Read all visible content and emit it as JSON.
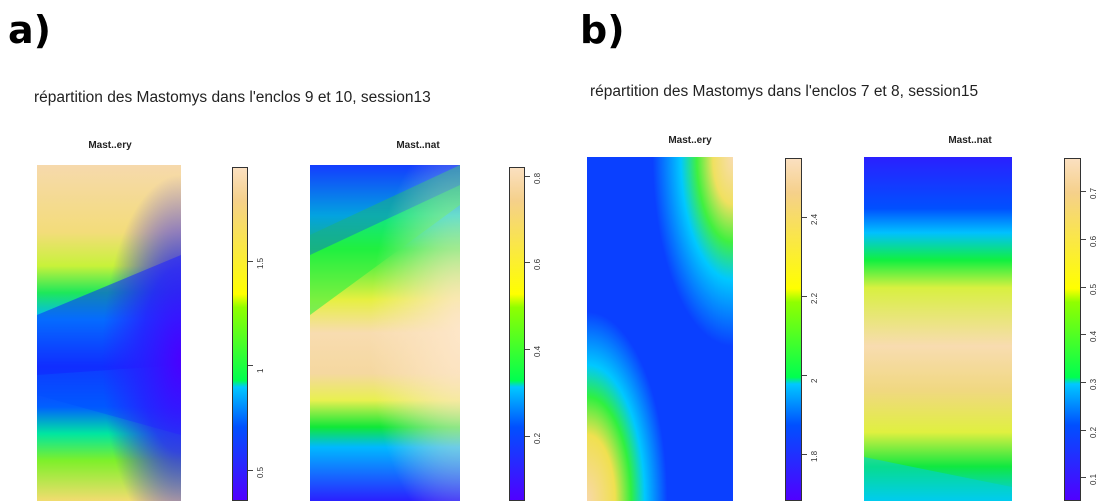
{
  "panels": [
    {
      "label": "a)",
      "title": "répartition des Mastomys dans l'enclos 9 et 10, session13",
      "maps": [
        {
          "title": "Mast..ery",
          "ticks": [
            "0.5",
            "1",
            "1.5"
          ],
          "range": [
            0.35,
            1.95
          ]
        },
        {
          "title": "Mast..nat",
          "ticks": [
            "0.2",
            "0.4",
            "0.6",
            "0.8"
          ],
          "range": [
            0.05,
            0.82
          ]
        }
      ]
    },
    {
      "label": "b)",
      "title": "répartition des Mastomys dans l'enclos 7 et 8, session15",
      "maps": [
        {
          "title": "Mast..ery",
          "ticks": [
            "1.8",
            "2",
            "2.2",
            "2.4"
          ],
          "range": [
            1.68,
            2.55
          ]
        },
        {
          "title": "Mast..nat",
          "ticks": [
            "0.1",
            "0.2",
            "0.3",
            "0.4",
            "0.5",
            "0.6",
            "0.7"
          ],
          "range": [
            0.05,
            0.77
          ]
        }
      ]
    }
  ],
  "chart_data": {
    "type": "heatmap",
    "colormap": [
      "#5000ff",
      "#0050ff",
      "#00c8ff",
      "#00ff50",
      "#ffff00",
      "#f5d08a",
      "#fbe0c0"
    ]
  }
}
